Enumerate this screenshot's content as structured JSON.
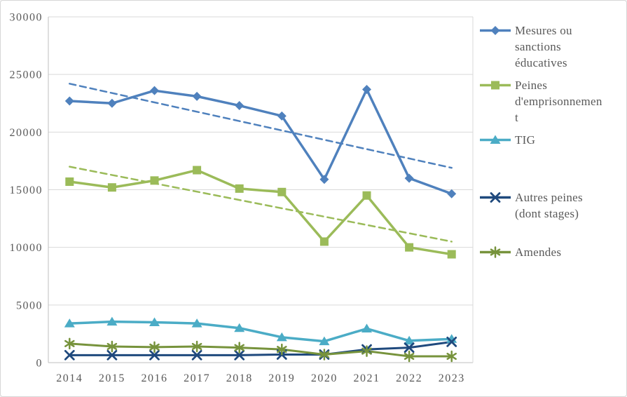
{
  "chart": {
    "background": "#FFFFFF",
    "frame_border_color": "#D7D7D7",
    "text_color": "#595959",
    "gridline_color": "#D9D9D9",
    "axis_line_color": "#BFBFBF"
  },
  "chart_data": {
    "type": "line",
    "title": "",
    "xlabel": "",
    "ylabel": "",
    "grid": true,
    "legend_position": "right",
    "categories": [
      "2014",
      "2015",
      "2016",
      "2017",
      "2018",
      "2019",
      "2020",
      "2021",
      "2022",
      "2023"
    ],
    "y_axis": {
      "min": 0,
      "max": 30000,
      "step": 5000,
      "tick_labels": [
        "0",
        "5000",
        "10000",
        "15000",
        "20000",
        "25000",
        "30000"
      ]
    },
    "series": [
      {
        "name": "Mesures ou sanctions éducatives",
        "legend_label": "Mesures ou\nsanctions\néducatives",
        "color": "#4F81BD",
        "marker": "diamond",
        "line_width": 3.5,
        "values": [
          22700,
          22500,
          23600,
          23100,
          22300,
          21400,
          15900,
          23700,
          16000,
          14650
        ],
        "trendline": {
          "style": "dashed",
          "start": 24200,
          "end": 16900
        }
      },
      {
        "name": "Peines d'emprisonnement",
        "legend_label": "Peines\nd'emprisonnemen\nt",
        "color": "#9BBB59",
        "marker": "square",
        "line_width": 3.5,
        "values": [
          15700,
          15200,
          15800,
          16700,
          15100,
          14800,
          10500,
          14500,
          10000,
          9400
        ],
        "trendline": {
          "style": "dashed",
          "start": 17000,
          "end": 10500
        }
      },
      {
        "name": "TIG",
        "legend_label": "TIG",
        "color": "#4BACC6",
        "marker": "triangle",
        "line_width": 3.5,
        "values": [
          3400,
          3550,
          3500,
          3400,
          3000,
          2200,
          1850,
          2950,
          1900,
          2050
        ],
        "trendline": null
      },
      {
        "name": "Autres peines (dont stages)",
        "legend_label": "Autres peines\n(dont stages)",
        "color": "#1F497D",
        "marker": "x",
        "line_width": 3,
        "values": [
          650,
          650,
          650,
          650,
          650,
          700,
          700,
          1150,
          1300,
          1800
        ],
        "trendline": null
      },
      {
        "name": "Amendes",
        "legend_label": "Amendes",
        "color": "#77933C",
        "marker": "star",
        "line_width": 3,
        "values": [
          1650,
          1400,
          1350,
          1400,
          1300,
          1150,
          700,
          1000,
          550,
          550
        ],
        "trendline": null
      }
    ]
  }
}
